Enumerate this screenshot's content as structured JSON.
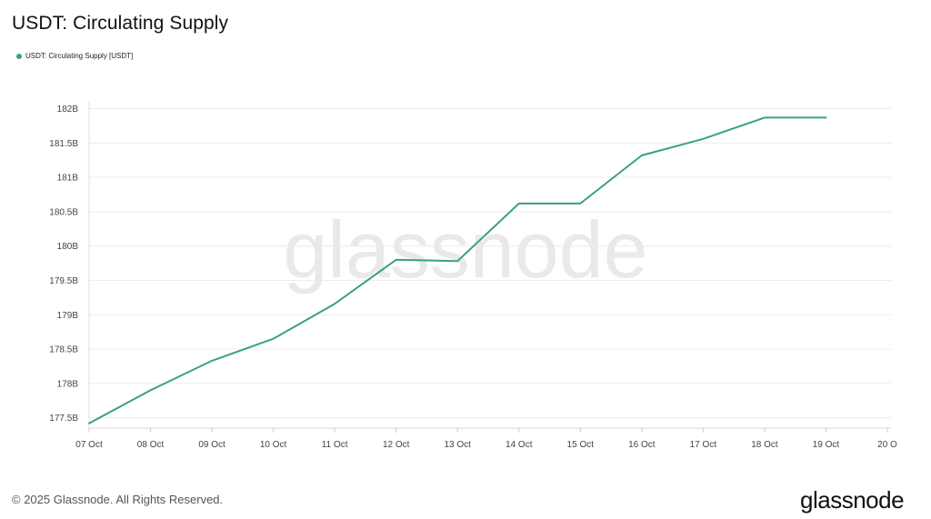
{
  "header": {
    "title": "USDT: Circulating Supply"
  },
  "legend": {
    "items": [
      {
        "label": "USDT: Circulating Supply [USDT]",
        "color": "#3aa17e"
      }
    ]
  },
  "watermark": {
    "text": "glassnode"
  },
  "footer": {
    "copyright": "© 2025 Glassnode. All Rights Reserved.",
    "logo_text": "glassnode"
  },
  "chart_data": {
    "type": "line",
    "title": "USDT: Circulating Supply",
    "xlabel": "",
    "ylabel": "",
    "x_ticks": [
      "07 Oct",
      "08 Oct",
      "09 Oct",
      "10 Oct",
      "11 Oct",
      "12 Oct",
      "13 Oct",
      "14 Oct",
      "15 Oct",
      "16 Oct",
      "17 Oct",
      "18 Oct",
      "19 Oct",
      "20 O"
    ],
    "y_ticks": [
      "177.5B",
      "178B",
      "178.5B",
      "179B",
      "179.5B",
      "180B",
      "180.5B",
      "181B",
      "181.5B",
      "182B"
    ],
    "y_tick_values": [
      177.5,
      178,
      178.5,
      179,
      179.5,
      180,
      180.5,
      181,
      181.5,
      182
    ],
    "ylim": [
      177.35,
      182.1
    ],
    "y_unit": "B",
    "grid": true,
    "legend_position": "top-left",
    "series": [
      {
        "name": "USDT: Circulating Supply [USDT]",
        "color": "#3aa17e",
        "x": [
          "07 Oct",
          "08 Oct",
          "09 Oct",
          "10 Oct",
          "11 Oct",
          "12 Oct",
          "13 Oct",
          "14 Oct",
          "15 Oct",
          "16 Oct",
          "17 Oct",
          "18 Oct",
          "19 Oct"
        ],
        "values": [
          177.42,
          177.9,
          178.33,
          178.65,
          179.16,
          179.8,
          179.78,
          180.62,
          180.62,
          181.32,
          181.56,
          181.87,
          181.87
        ]
      }
    ]
  }
}
